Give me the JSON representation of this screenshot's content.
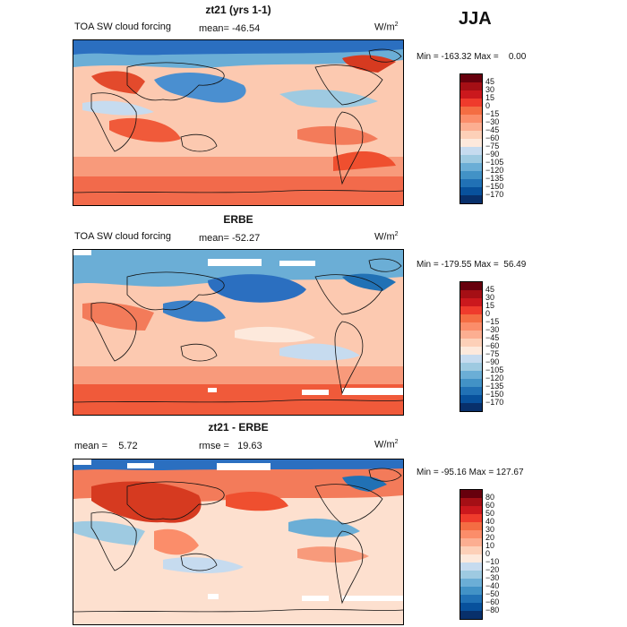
{
  "season": "JJA",
  "panels": [
    {
      "title": "zt21 (yrs 1-1)",
      "left_label": "TOA SW cloud forcing",
      "mean_label": "mean= -46.54",
      "units": "W/m",
      "units_sup": "2",
      "minmax": "Min = -163.32 Max =    0.00",
      "colorbar": {
        "labels": [
          "45",
          "30",
          "15",
          "0",
          "−15",
          "−30",
          "−45",
          "−60",
          "−75",
          "−90",
          "−105",
          "−120",
          "−135",
          "−150",
          "−170"
        ],
        "colors": [
          "#67000d",
          "#a50f15",
          "#cb181d",
          "#ef3b2c",
          "#f46d43",
          "#fb8d6a",
          "#fcae91",
          "#fdd0b8",
          "#fde9dc",
          "#c6dbef",
          "#9ecae1",
          "#6baed6",
          "#4292c6",
          "#2171b5",
          "#08519c",
          "#08306b"
        ]
      }
    },
    {
      "title": "ERBE",
      "left_label": "TOA SW cloud forcing",
      "mean_label": "mean= -52.27",
      "units": "W/m",
      "units_sup": "2",
      "minmax": "Min = -179.55 Max =  56.49",
      "colorbar": {
        "labels": [
          "45",
          "30",
          "15",
          "0",
          "−15",
          "−30",
          "−45",
          "−60",
          "−75",
          "−90",
          "−105",
          "−120",
          "−135",
          "−150",
          "−170"
        ],
        "colors": [
          "#67000d",
          "#a50f15",
          "#cb181d",
          "#ef3b2c",
          "#f46d43",
          "#fb8d6a",
          "#fcae91",
          "#fdd0b8",
          "#fde9dc",
          "#c6dbef",
          "#9ecae1",
          "#6baed6",
          "#4292c6",
          "#2171b5",
          "#08519c",
          "#08306b"
        ]
      }
    },
    {
      "title": "zt21 - ERBE",
      "left_label": "mean =    5.72",
      "mean_label": "rmse =   19.63",
      "units": "W/m",
      "units_sup": "2",
      "minmax": "Min = -95.16 Max = 127.67",
      "colorbar": {
        "labels": [
          "80",
          "60",
          "50",
          "40",
          "30",
          "20",
          "10",
          "0",
          "−10",
          "−20",
          "−30",
          "−40",
          "−50",
          "−60",
          "−80"
        ],
        "colors": [
          "#67000d",
          "#a50f15",
          "#cb181d",
          "#ef3b2c",
          "#f46d43",
          "#fb8d6a",
          "#fcae91",
          "#fdd0b8",
          "#fde9dc",
          "#c6dbef",
          "#9ecae1",
          "#6baed6",
          "#4292c6",
          "#2171b5",
          "#08519c",
          "#08306b"
        ]
      }
    }
  ]
}
